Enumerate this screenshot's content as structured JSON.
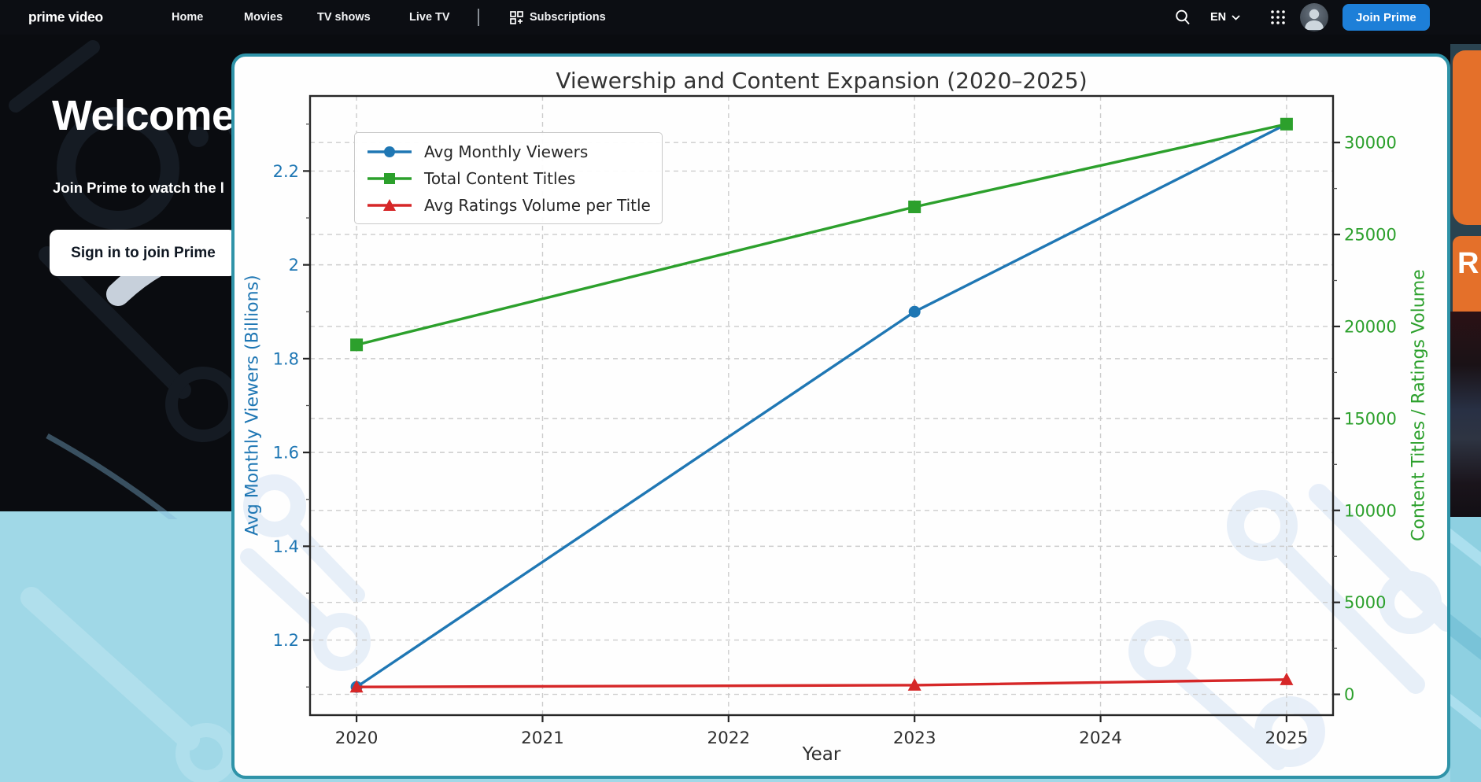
{
  "nav": {
    "logo": "prime video",
    "items": [
      "Home",
      "Movies",
      "TV shows",
      "Live TV"
    ],
    "subscriptions": "Subscriptions",
    "language": "EN",
    "join": "Join Prime"
  },
  "hero": {
    "title": "Welcome",
    "subtitle": "Join Prime to watch the l",
    "signin": "Sign in to join Prime"
  },
  "side": {
    "poster_letter": "R"
  },
  "chart_data": {
    "type": "line",
    "title": "Viewership and Content Expansion (2020–2025)",
    "xlabel": "Year",
    "x_ticks": [
      2020,
      2021,
      2022,
      2023,
      2024,
      2025
    ],
    "x_range": [
      2019.75,
      2025.25
    ],
    "x": [
      2020,
      2023,
      2025
    ],
    "axes": {
      "left": {
        "label": "Avg Monthly Viewers (Billions)",
        "ticks": [
          1.2,
          1.4,
          1.6,
          1.8,
          2.0,
          2.2
        ],
        "range": [
          1.04,
          2.36
        ],
        "color": "#1f77b4",
        "minor_step": 0.1
      },
      "right": {
        "label": "Content Titles / Ratings Volume",
        "ticks": [
          0,
          5000,
          10000,
          15000,
          20000,
          25000,
          30000
        ],
        "range": [
          -1130,
          32530
        ],
        "color": "#2ca02c",
        "minor_step": 2500
      }
    },
    "series": [
      {
        "name": "Avg Monthly Viewers",
        "axis": "left",
        "color": "#1f77b4",
        "marker": "circle",
        "values": [
          1.1,
          1.9,
          2.3
        ]
      },
      {
        "name": "Total Content Titles",
        "axis": "right",
        "color": "#2ca02c",
        "marker": "square",
        "values": [
          19000,
          26500,
          31000
        ]
      },
      {
        "name": "Avg Ratings Volume per Title",
        "axis": "right",
        "color": "#d62728",
        "marker": "triangle",
        "values": [
          400,
          500,
          800
        ]
      }
    ],
    "legend_position": "upper left",
    "grid": {
      "style": "dashed",
      "color": "#cccccc"
    }
  }
}
